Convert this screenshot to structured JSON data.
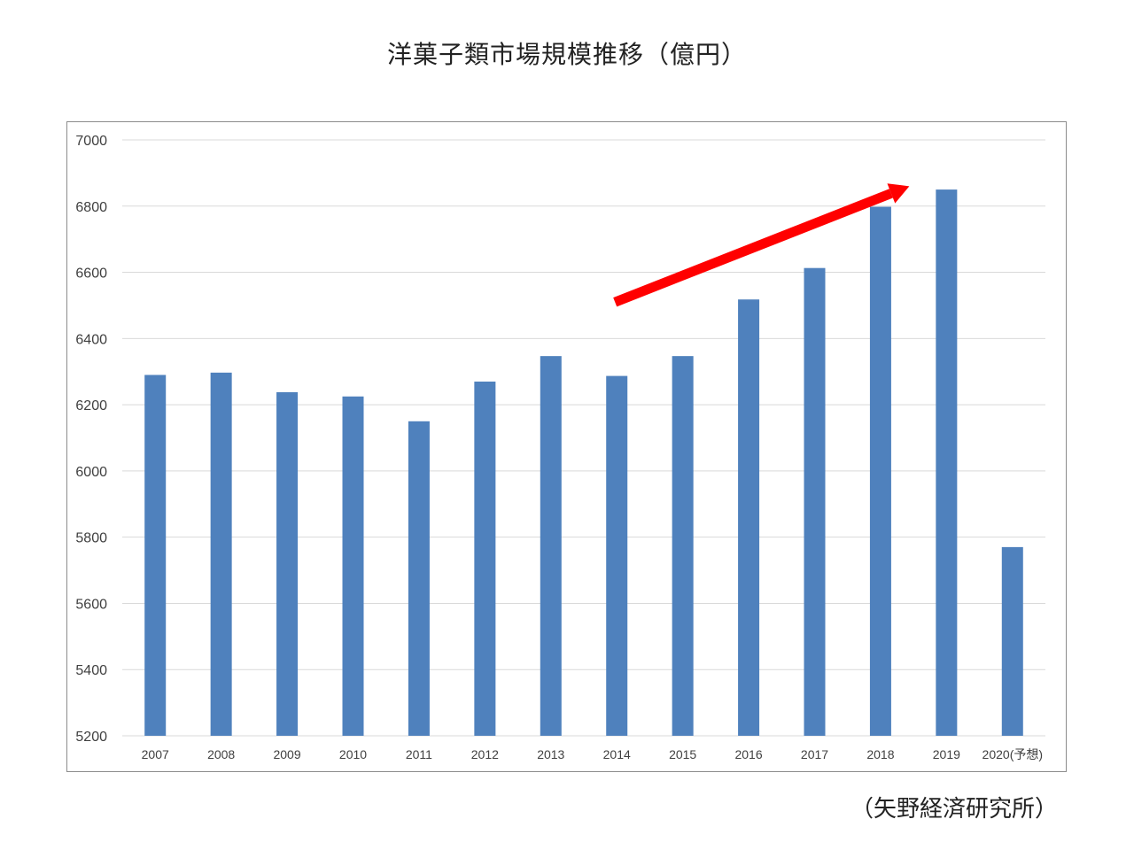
{
  "title": "洋菓子類市場規模推移（億円）",
  "source": "（矢野経済研究所）",
  "chart_data": {
    "type": "bar",
    "title": "洋菓子類市場規模推移（億円）",
    "xlabel": "",
    "ylabel": "",
    "categories": [
      "2007",
      "2008",
      "2009",
      "2010",
      "2011",
      "2012",
      "2013",
      "2014",
      "2015",
      "2016",
      "2017",
      "2018",
      "2019",
      "2020(予想)"
    ],
    "series": [
      {
        "values": [
          6290,
          6297,
          6238,
          6225,
          6150,
          6270,
          6347,
          6287,
          6347,
          6518,
          6613,
          6798,
          6850,
          5770
        ]
      }
    ],
    "ylim": [
      5200,
      7000
    ],
    "yticks": [
      5200,
      5400,
      5600,
      5800,
      6000,
      6200,
      6400,
      6600,
      6800,
      7000
    ],
    "grid": true,
    "legend": "none",
    "bar_color": "#4f81bd",
    "grid_color": "#d9d9d9",
    "annotation": {
      "type": "arrow",
      "color": "#ff0000",
      "from": {
        "x": "2014",
        "y": 6510
      },
      "to": {
        "x": "2019",
        "y": 6860
      }
    }
  }
}
